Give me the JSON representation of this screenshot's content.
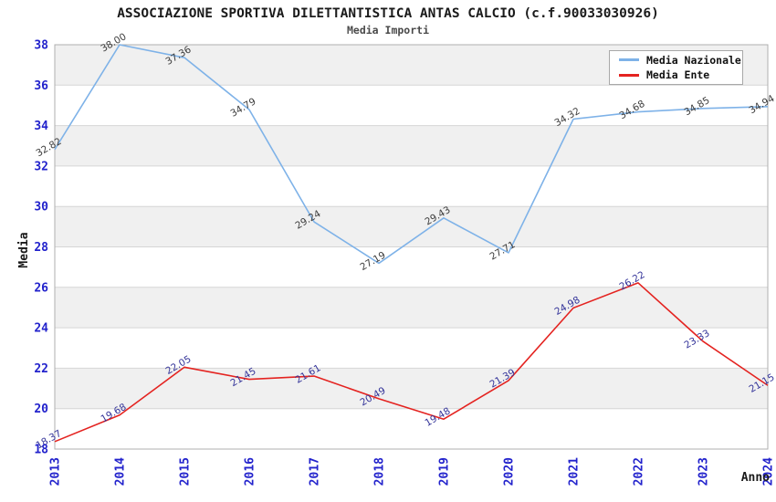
{
  "title": "ASSOCIAZIONE SPORTIVA DILETTANTISTICA ANTAS CALCIO (c.f.90033030926)",
  "subtitle": "Media Importi",
  "legend": [
    {
      "label": "Media Nazionale",
      "color": "#7EB2E8"
    },
    {
      "label": "Media Ente",
      "color": "#E42320"
    }
  ],
  "colors": {
    "tick_label": "#2222CC",
    "band_gray": "#F0F0F0",
    "gridline": "#D6D6D6",
    "plot_border": "#AFAFAF",
    "title_text": "#1A1A1A",
    "nazionale_line": "#7EB2E8",
    "ente_line": "#E42320",
    "nazionale_point_label": "#3C3C3C",
    "ente_point_label": "#333399"
  },
  "chart_data": {
    "type": "line",
    "title": "ASSOCIAZIONE SPORTIVA DILETTANTISTICA ANTAS CALCIO (c.f.90033030926)",
    "subtitle": "Media Importi",
    "xlabel": "Anno",
    "ylabel": "Media",
    "x": [
      "2013",
      "2014",
      "2015",
      "2016",
      "2017",
      "2018",
      "2019",
      "2020",
      "2021",
      "2022",
      "2023",
      "2024"
    ],
    "series": [
      {
        "name": "Media Nazionale",
        "color": "#7EB2E8",
        "label_color": "#3C3C3C",
        "values": [
          32.82,
          38.0,
          37.36,
          34.79,
          29.24,
          27.19,
          29.43,
          27.71,
          34.32,
          34.68,
          34.85,
          34.94
        ]
      },
      {
        "name": "Media Ente",
        "color": "#E42320",
        "label_color": "#333399",
        "values": [
          18.37,
          19.68,
          22.05,
          21.45,
          21.61,
          20.49,
          19.48,
          21.39,
          24.98,
          26.22,
          23.33,
          21.15
        ]
      }
    ],
    "ylim": [
      18,
      38
    ],
    "ytick_step": 2,
    "y_ticks": [
      18,
      20,
      22,
      24,
      26,
      28,
      30,
      32,
      34,
      36,
      38
    ],
    "grid": true,
    "band_colors": [
      "#FFFFFF",
      "#F0F0F0"
    ],
    "legend_position": "top-right",
    "point_label_format": "2-decimals",
    "point_label_rotation_deg": -30
  }
}
